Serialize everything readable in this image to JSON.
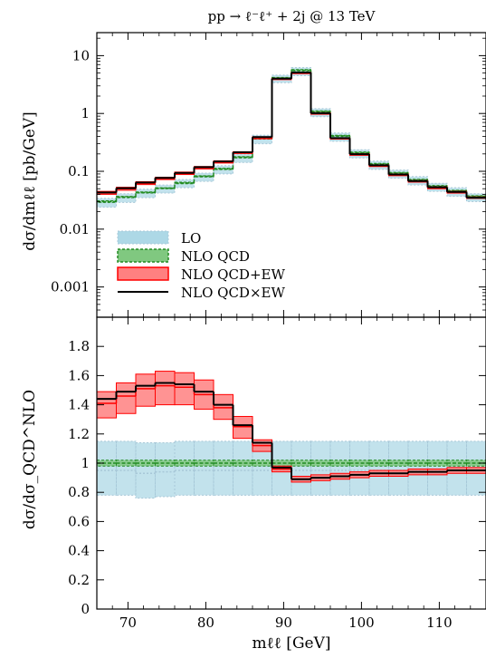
{
  "chart_data": {
    "title": "pp → ℓ⁻ℓ⁺ + 2j @ 13 TeV",
    "xlabel": "mℓℓ [GeV]",
    "bin_edges": [
      66,
      68.5,
      71,
      73.5,
      76,
      78.5,
      81,
      83.5,
      86,
      88.5,
      91,
      93.5,
      96,
      98.5,
      101,
      103.5,
      106,
      108.5,
      111,
      113.5,
      116
    ],
    "xticks": [
      70,
      80,
      90,
      100,
      110
    ],
    "x_range": [
      66,
      116
    ],
    "panels": [
      {
        "name": "upper",
        "type": "histogram-step",
        "ylabel": "dσ/dmℓℓ [pb/GeV]",
        "yscale": "log",
        "ylim": [
          0.0003,
          25
        ],
        "yticks": [
          0.001,
          0.01,
          0.1,
          1,
          10
        ],
        "ytick_labels": [
          "0.001",
          "0.01",
          "0.1",
          "1",
          "10"
        ],
        "legend_position": "bottom-left",
        "series": [
          {
            "name": "LO",
            "style": "band",
            "color": "#add8e6",
            "border": "#a8c8d8",
            "central": [
              0.029,
              0.035,
              0.042,
              0.05,
              0.062,
              0.08,
              0.108,
              0.17,
              0.36,
              4.0,
              5.4,
              1.05,
              0.4,
              0.205,
              0.13,
              0.091,
              0.07,
              0.054,
              0.045,
              0.036
            ],
            "lower": [
              0.024,
              0.029,
              0.035,
              0.042,
              0.052,
              0.067,
              0.09,
              0.142,
              0.3,
              3.4,
              4.5,
              0.88,
              0.33,
              0.17,
              0.108,
              0.076,
              0.058,
              0.045,
              0.037,
              0.03
            ],
            "upper": [
              0.034,
              0.041,
              0.049,
              0.058,
              0.072,
              0.093,
              0.125,
              0.198,
              0.42,
              4.6,
              6.2,
              1.21,
              0.46,
              0.236,
              0.15,
              0.105,
              0.081,
              0.062,
              0.052,
              0.041
            ]
          },
          {
            "name": "NLO QCD",
            "style": "band-dashed",
            "color": "#80c880",
            "border": "#228b22",
            "central": [
              0.03,
              0.036,
              0.043,
              0.051,
              0.063,
              0.082,
              0.11,
              0.175,
              0.37,
              4.1,
              5.6,
              1.08,
              0.41,
              0.21,
              0.133,
              0.093,
              0.071,
              0.055,
              0.046,
              0.037
            ],
            "lower": [
              0.029,
              0.035,
              0.042,
              0.05,
              0.061,
              0.08,
              0.107,
              0.17,
              0.36,
              4.0,
              5.45,
              1.05,
              0.4,
              0.204,
              0.129,
              0.09,
              0.069,
              0.053,
              0.045,
              0.036
            ],
            "upper": [
              0.031,
              0.037,
              0.044,
              0.052,
              0.065,
              0.084,
              0.113,
              0.18,
              0.38,
              4.2,
              5.75,
              1.11,
              0.42,
              0.216,
              0.137,
              0.096,
              0.073,
              0.057,
              0.047,
              0.038
            ]
          },
          {
            "name": "NLO QCD+EW",
            "style": "band",
            "color": "#ff8080",
            "border": "#ff0000",
            "central": [
              0.042,
              0.05,
              0.062,
              0.075,
              0.092,
              0.115,
              0.145,
              0.21,
              0.38,
              3.95,
              5.0,
              1.0,
              0.37,
              0.195,
              0.125,
              0.087,
              0.067,
              0.052,
              0.043,
              0.035
            ],
            "lower": [
              0.04,
              0.047,
              0.059,
              0.072,
              0.088,
              0.11,
              0.139,
              0.203,
              0.365,
              3.85,
              4.88,
              0.97,
              0.36,
              0.189,
              0.121,
              0.084,
              0.065,
              0.05,
              0.042,
              0.034
            ],
            "upper": [
              0.045,
              0.053,
              0.066,
              0.079,
              0.097,
              0.121,
              0.152,
              0.218,
              0.395,
              4.05,
              5.12,
              1.03,
              0.38,
              0.201,
              0.129,
              0.09,
              0.069,
              0.054,
              0.045,
              0.036
            ]
          },
          {
            "name": "NLO QCD×EW",
            "style": "line",
            "color": "#000000",
            "central": [
              0.043,
              0.051,
              0.064,
              0.077,
              0.094,
              0.118,
              0.148,
              0.213,
              0.39,
              4.0,
              5.1,
              1.01,
              0.375,
              0.198,
              0.127,
              0.088,
              0.068,
              0.053,
              0.044,
              0.035
            ]
          }
        ]
      },
      {
        "name": "ratio",
        "type": "histogram-step",
        "ylabel": "dσ/dσ_QCD^NLO",
        "yscale": "linear",
        "ylim": [
          0,
          2.0
        ],
        "yticks": [
          0,
          0.2,
          0.4,
          0.6,
          0.8,
          1,
          1.2,
          1.4,
          1.6,
          1.8
        ],
        "ytick_labels": [
          "0",
          "0.2",
          "0.4",
          "0.6",
          "0.8",
          "1",
          "1.2",
          "1.4",
          "1.6",
          "1.8"
        ],
        "series": [
          {
            "name": "LO",
            "style": "band",
            "color": "#add8e6",
            "border": "#a8c8d8",
            "central": [
              0.95,
              0.95,
              0.93,
              0.94,
              0.95,
              0.95,
              0.95,
              0.95,
              0.95,
              0.95,
              0.95,
              0.95,
              0.95,
              0.95,
              0.95,
              0.95,
              0.95,
              0.95,
              0.95,
              0.95
            ],
            "lower": [
              0.78,
              0.78,
              0.76,
              0.77,
              0.78,
              0.78,
              0.78,
              0.78,
              0.78,
              0.78,
              0.78,
              0.78,
              0.78,
              0.78,
              0.78,
              0.78,
              0.78,
              0.78,
              0.78,
              0.78
            ],
            "upper": [
              1.15,
              1.15,
              1.14,
              1.14,
              1.15,
              1.15,
              1.15,
              1.15,
              1.15,
              1.15,
              1.15,
              1.15,
              1.15,
              1.15,
              1.15,
              1.15,
              1.15,
              1.15,
              1.15,
              1.15
            ]
          },
          {
            "name": "NLO QCD",
            "style": "band-dashed",
            "color": "#80c880",
            "border": "#228b22",
            "central": [
              1.0,
              1.0,
              1.0,
              1.0,
              1.0,
              1.0,
              1.0,
              1.0,
              1.0,
              1.0,
              1.0,
              1.0,
              1.0,
              1.0,
              1.0,
              1.0,
              1.0,
              1.0,
              1.0,
              1.0
            ],
            "lower": [
              0.98,
              0.98,
              0.98,
              0.98,
              0.98,
              0.98,
              0.98,
              0.98,
              0.98,
              0.98,
              0.98,
              0.98,
              0.98,
              0.98,
              0.98,
              0.98,
              0.98,
              0.98,
              0.98,
              0.98
            ],
            "upper": [
              1.02,
              1.02,
              1.02,
              1.02,
              1.02,
              1.02,
              1.02,
              1.02,
              1.02,
              1.02,
              1.02,
              1.02,
              1.02,
              1.02,
              1.02,
              1.02,
              1.02,
              1.02,
              1.02,
              1.02
            ]
          },
          {
            "name": "NLO QCD+EW",
            "style": "band",
            "color": "#ff8080",
            "border": "#ff0000",
            "central": [
              1.41,
              1.46,
              1.51,
              1.53,
              1.52,
              1.47,
              1.38,
              1.25,
              1.12,
              0.96,
              0.89,
              0.9,
              0.91,
              0.92,
              0.93,
              0.93,
              0.94,
              0.94,
              0.95,
              0.95
            ],
            "lower": [
              1.31,
              1.34,
              1.39,
              1.4,
              1.4,
              1.37,
              1.3,
              1.17,
              1.08,
              0.94,
              0.87,
              0.88,
              0.89,
              0.9,
              0.91,
              0.91,
              0.92,
              0.92,
              0.93,
              0.93
            ],
            "upper": [
              1.49,
              1.55,
              1.61,
              1.63,
              1.62,
              1.57,
              1.47,
              1.32,
              1.16,
              0.98,
              0.91,
              0.92,
              0.93,
              0.94,
              0.95,
              0.95,
              0.96,
              0.96,
              0.97,
              0.97
            ]
          },
          {
            "name": "NLO QCD×EW",
            "style": "line",
            "color": "#000000",
            "central": [
              1.44,
              1.49,
              1.53,
              1.55,
              1.54,
              1.49,
              1.4,
              1.26,
              1.14,
              0.97,
              0.89,
              0.9,
              0.91,
              0.92,
              0.93,
              0.93,
              0.94,
              0.94,
              0.95,
              0.95
            ]
          }
        ]
      }
    ]
  }
}
